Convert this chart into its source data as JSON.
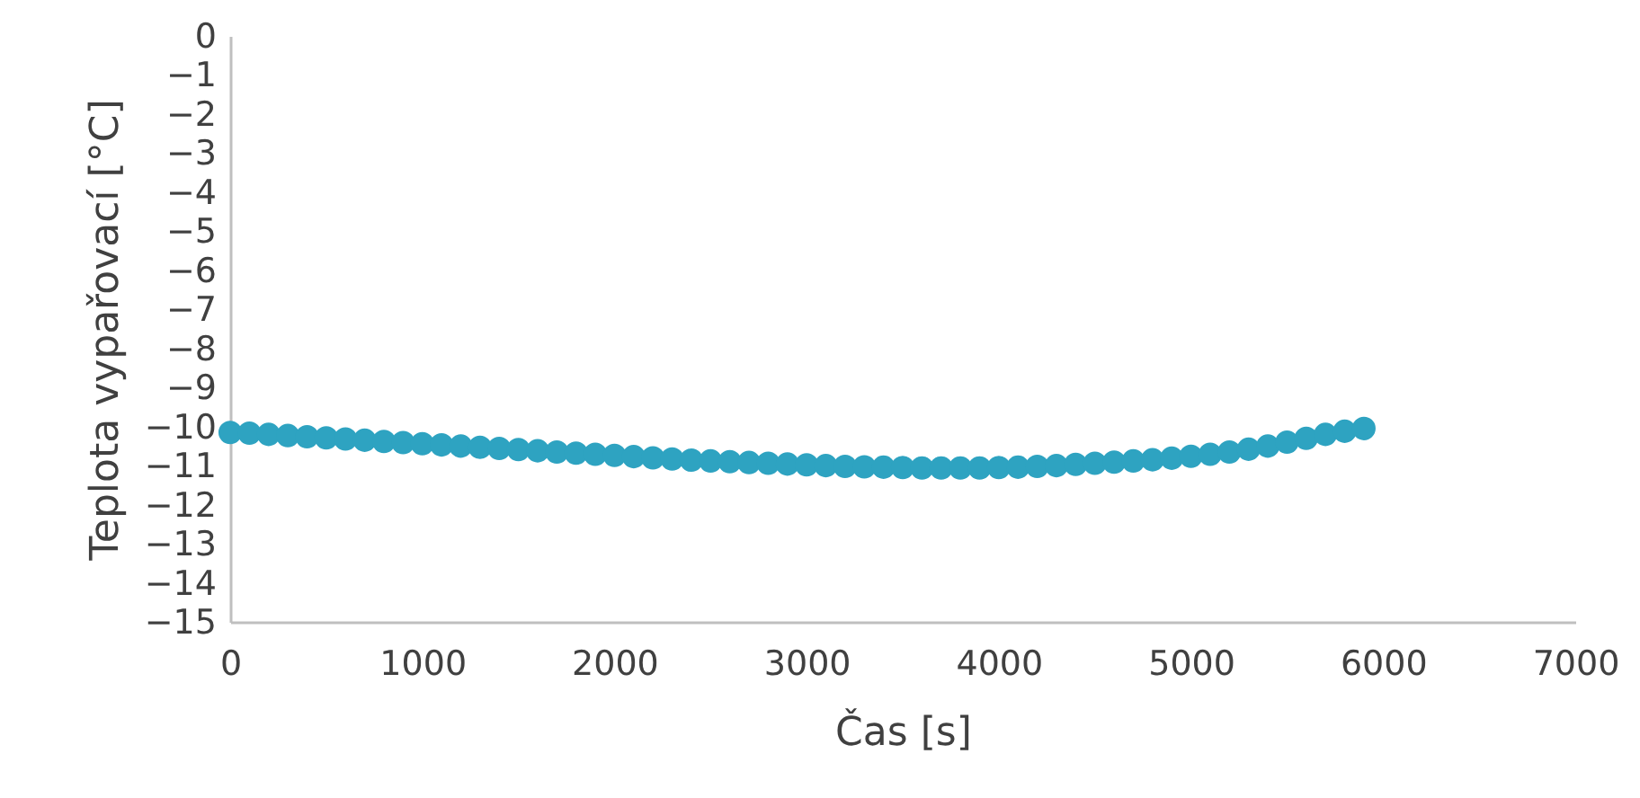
{
  "chart_data": {
    "type": "scatter",
    "xlabel": "Čas [s]",
    "ylabel": "Teplota vypařovací [°C]",
    "x": [
      0,
      100,
      200,
      300,
      400,
      500,
      600,
      700,
      800,
      900,
      1000,
      1100,
      1200,
      1300,
      1400,
      1500,
      1600,
      1700,
      1800,
      1900,
      2000,
      2100,
      2200,
      2300,
      2400,
      2500,
      2600,
      2700,
      2800,
      2900,
      3000,
      3100,
      3200,
      3300,
      3400,
      3500,
      3600,
      3700,
      3800,
      3900,
      4000,
      4100,
      4200,
      4300,
      4400,
      4500,
      4600,
      4700,
      4800,
      4900,
      5000,
      5100,
      5200,
      5300,
      5400,
      5500,
      5600,
      5700,
      5800,
      5900
    ],
    "series": [
      {
        "color": "#2ea3c1",
        "values": [
          -10.15,
          -10.17,
          -10.2,
          -10.23,
          -10.26,
          -10.29,
          -10.32,
          -10.35,
          -10.38,
          -10.41,
          -10.44,
          -10.47,
          -10.5,
          -10.53,
          -10.56,
          -10.59,
          -10.62,
          -10.65,
          -10.68,
          -10.71,
          -10.74,
          -10.77,
          -10.8,
          -10.83,
          -10.86,
          -10.88,
          -10.9,
          -10.92,
          -10.94,
          -10.96,
          -10.98,
          -11.0,
          -11.02,
          -11.03,
          -11.04,
          -11.05,
          -11.06,
          -11.06,
          -11.06,
          -11.06,
          -11.05,
          -11.04,
          -11.02,
          -11.0,
          -10.97,
          -10.94,
          -10.91,
          -10.88,
          -10.85,
          -10.81,
          -10.76,
          -10.71,
          -10.65,
          -10.58,
          -10.5,
          -10.4,
          -10.3,
          -10.2,
          -10.12,
          -10.05
        ]
      }
    ],
    "xlim": [
      0,
      7000
    ],
    "xticks": [
      0,
      1000,
      2000,
      3000,
      4000,
      5000,
      6000,
      7000
    ],
    "ylim": [
      -15,
      0
    ],
    "yticks": [
      0,
      -1,
      -2,
      -3,
      -4,
      -5,
      -6,
      -7,
      -8,
      -9,
      -10,
      -11,
      -12,
      -13,
      -14,
      -15
    ],
    "grid": false,
    "marker": "circle"
  }
}
